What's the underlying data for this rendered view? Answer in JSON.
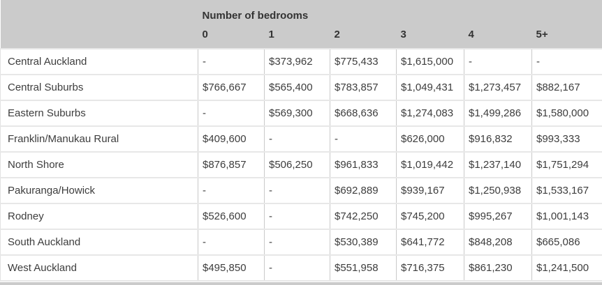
{
  "chart_data": {
    "type": "table",
    "title": "Number of bedrooms",
    "corner_label": "",
    "columns": [
      "0",
      "1",
      "2",
      "3",
      "4",
      "5+"
    ],
    "rows": [
      {
        "label": "Central Auckland",
        "values": [
          "-",
          "$373,962",
          "$775,433",
          "$1,615,000",
          "-",
          "-"
        ]
      },
      {
        "label": "Central Suburbs",
        "values": [
          "$766,667",
          "$565,400",
          "$783,857",
          "$1,049,431",
          "$1,273,457",
          "$882,167"
        ]
      },
      {
        "label": "Eastern Suburbs",
        "values": [
          "-",
          "$569,300",
          "$668,636",
          "$1,274,083",
          "$1,499,286",
          "$1,580,000"
        ]
      },
      {
        "label": "Franklin/Manukau Rural",
        "values": [
          "$409,600",
          "-",
          "-",
          "$626,000",
          "$916,832",
          "$993,333"
        ]
      },
      {
        "label": "North Shore",
        "values": [
          "$876,857",
          "$506,250",
          "$961,833",
          "$1,019,442",
          "$1,237,140",
          "$1,751,294"
        ]
      },
      {
        "label": "Pakuranga/Howick",
        "values": [
          "-",
          "-",
          "$692,889",
          "$939,167",
          "$1,250,938",
          "$1,533,167"
        ]
      },
      {
        "label": "Rodney",
        "values": [
          "$526,600",
          "-",
          "$742,250",
          "$745,200",
          "$995,267",
          "$1,001,143"
        ]
      },
      {
        "label": "South Auckland",
        "values": [
          "-",
          "-",
          "$530,389",
          "$641,772",
          "$848,208",
          "$665,086"
        ]
      },
      {
        "label": "West Auckland",
        "values": [
          "$495,850",
          "-",
          "$551,958",
          "$716,375",
          "$861,230",
          "$1,241,500"
        ]
      }
    ],
    "layout": {
      "missing_value_marker": "-",
      "grid": "on",
      "header_position": "top"
    }
  },
  "colors": {
    "header_bg": "#cbcbcb",
    "header_text": "#333333",
    "body_text": "#3d3d3d",
    "grid_line": "#c9c9c9",
    "row_divider": "#e7e7e7"
  }
}
